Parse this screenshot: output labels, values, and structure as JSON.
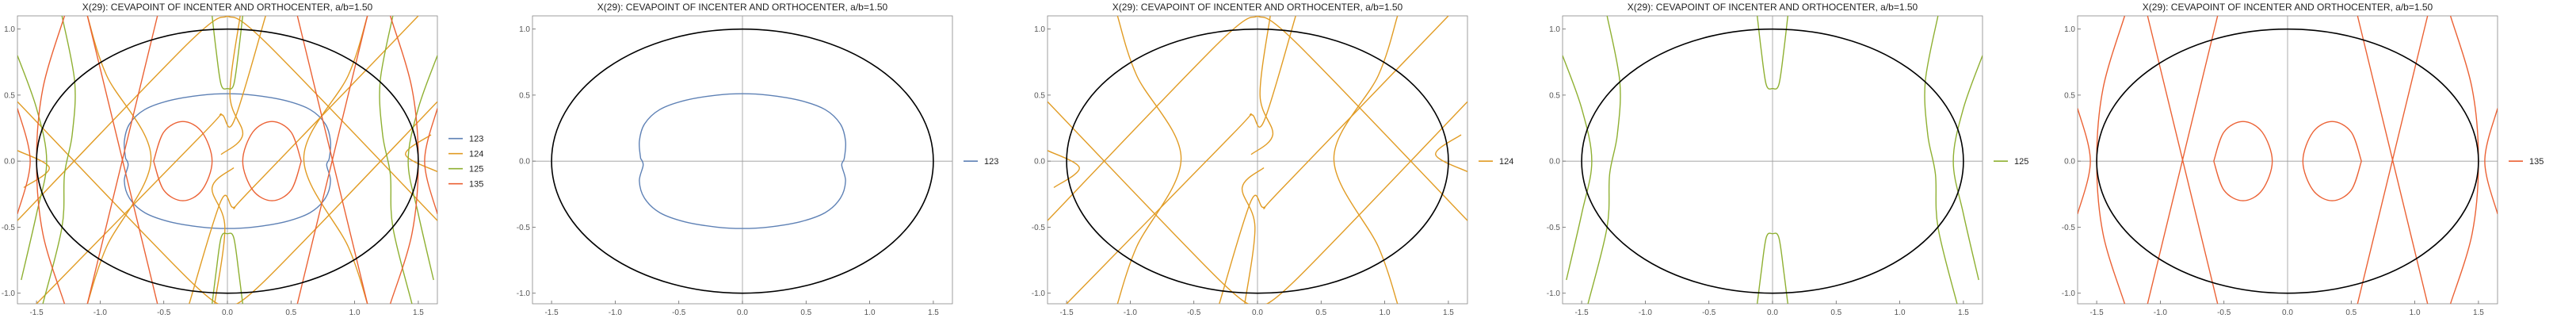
{
  "colors": {
    "123": "#5e81b5",
    "124": "#e19c24",
    "125": "#8fb032",
    "135": "#eb6235",
    "ellipse": "#000000",
    "axis": "#9a9a9a",
    "text": "#222222"
  },
  "chart_data": [
    {
      "type": "curve",
      "title": "X(29): CEVAPOINT OF INCENTER AND ORTHOCENTER, a/b=1.50",
      "xlim": [
        -1.65,
        1.65
      ],
      "ylim": [
        -1.08,
        1.1
      ],
      "xticks": [
        -1.5,
        -1.0,
        -0.5,
        0.0,
        0.5,
        1.0,
        1.5
      ],
      "yticks": [
        -1.0,
        -0.5,
        0.0,
        0.5,
        1.0
      ],
      "xtick_labels": [
        "-1.5",
        "-1.0",
        "-0.5",
        "0.0",
        "0.5",
        "1.0",
        "1.5"
      ],
      "ytick_labels": [
        "-1.0",
        "-0.5",
        "0.0",
        "0.5",
        "1.0"
      ],
      "ellipse": {
        "a": 1.5,
        "b": 1.0
      },
      "legend": [
        "123",
        "124",
        "125",
        "135"
      ],
      "legend_position": "right",
      "series": [
        {
          "name": "123",
          "color_key": "123"
        },
        {
          "name": "124",
          "color_key": "124"
        },
        {
          "name": "125",
          "color_key": "125"
        },
        {
          "name": "135",
          "color_key": "135"
        }
      ]
    },
    {
      "type": "curve",
      "title": "X(29): CEVAPOINT OF INCENTER AND ORTHOCENTER, a/b=1.50",
      "xlim": [
        -1.65,
        1.65
      ],
      "ylim": [
        -1.08,
        1.1
      ],
      "xticks": [
        -1.5,
        -1.0,
        -0.5,
        0.0,
        0.5,
        1.0,
        1.5
      ],
      "yticks": [
        -1.0,
        -0.5,
        0.0,
        0.5,
        1.0
      ],
      "xtick_labels": [
        "-1.5",
        "-1.0",
        "-0.5",
        "0.0",
        "0.5",
        "1.0",
        "1.5"
      ],
      "ytick_labels": [
        "-1.0",
        "-0.5",
        "0.0",
        "0.5",
        "1.0"
      ],
      "ellipse": {
        "a": 1.5,
        "b": 1.0
      },
      "legend": [
        "123"
      ],
      "legend_position": "right",
      "series": [
        {
          "name": "123",
          "color_key": "123"
        }
      ]
    },
    {
      "type": "curve",
      "title": "X(29): CEVAPOINT OF INCENTER AND ORTHOCENTER, a/b=1.50",
      "xlim": [
        -1.65,
        1.65
      ],
      "ylim": [
        -1.08,
        1.1
      ],
      "xticks": [
        -1.5,
        -1.0,
        -0.5,
        0.0,
        0.5,
        1.0,
        1.5
      ],
      "yticks": [
        -1.0,
        -0.5,
        0.0,
        0.5,
        1.0
      ],
      "xtick_labels": [
        "-1.5",
        "-1.0",
        "-0.5",
        "0.0",
        "0.5",
        "1.0",
        "1.5"
      ],
      "ytick_labels": [
        "-1.0",
        "-0.5",
        "0.0",
        "0.5",
        "1.0"
      ],
      "ellipse": {
        "a": 1.5,
        "b": 1.0
      },
      "legend": [
        "124"
      ],
      "legend_position": "right",
      "series": [
        {
          "name": "124",
          "color_key": "124"
        }
      ]
    },
    {
      "type": "curve",
      "title": "X(29): CEVAPOINT OF INCENTER AND ORTHOCENTER, a/b=1.50",
      "xlim": [
        -1.65,
        1.65
      ],
      "ylim": [
        -1.08,
        1.1
      ],
      "xticks": [
        -1.5,
        -1.0,
        -0.5,
        0.0,
        0.5,
        1.0,
        1.5
      ],
      "yticks": [
        -1.0,
        -0.5,
        0.0,
        0.5,
        1.0
      ],
      "xtick_labels": [
        "-1.5",
        "-1.0",
        "-0.5",
        "0.0",
        "0.5",
        "1.0",
        "1.5"
      ],
      "ytick_labels": [
        "-1.0",
        "-0.5",
        "0.0",
        "0.5",
        "1.0"
      ],
      "ellipse": {
        "a": 1.5,
        "b": 1.0
      },
      "legend": [
        "125"
      ],
      "legend_position": "right",
      "series": [
        {
          "name": "125",
          "color_key": "125"
        }
      ]
    },
    {
      "type": "curve",
      "title": "X(29): CEVAPOINT OF INCENTER AND ORTHOCENTER, a/b=1.50",
      "xlim": [
        -1.65,
        1.65
      ],
      "ylim": [
        -1.08,
        1.1
      ],
      "xticks": [
        -1.5,
        -1.0,
        -0.5,
        0.0,
        0.5,
        1.0,
        1.5
      ],
      "yticks": [
        -1.0,
        -0.5,
        0.0,
        0.5,
        1.0
      ],
      "xtick_labels": [
        "-1.5",
        "-1.0",
        "-0.5",
        "0.0",
        "0.5",
        "1.0",
        "1.5"
      ],
      "ytick_labels": [
        "-1.0",
        "-0.5",
        "0.0",
        "0.5",
        "1.0"
      ],
      "ellipse": {
        "a": 1.5,
        "b": 1.0
      },
      "legend": [
        "135"
      ],
      "legend_position": "right",
      "series": [
        {
          "name": "135",
          "color_key": "135"
        }
      ]
    }
  ]
}
